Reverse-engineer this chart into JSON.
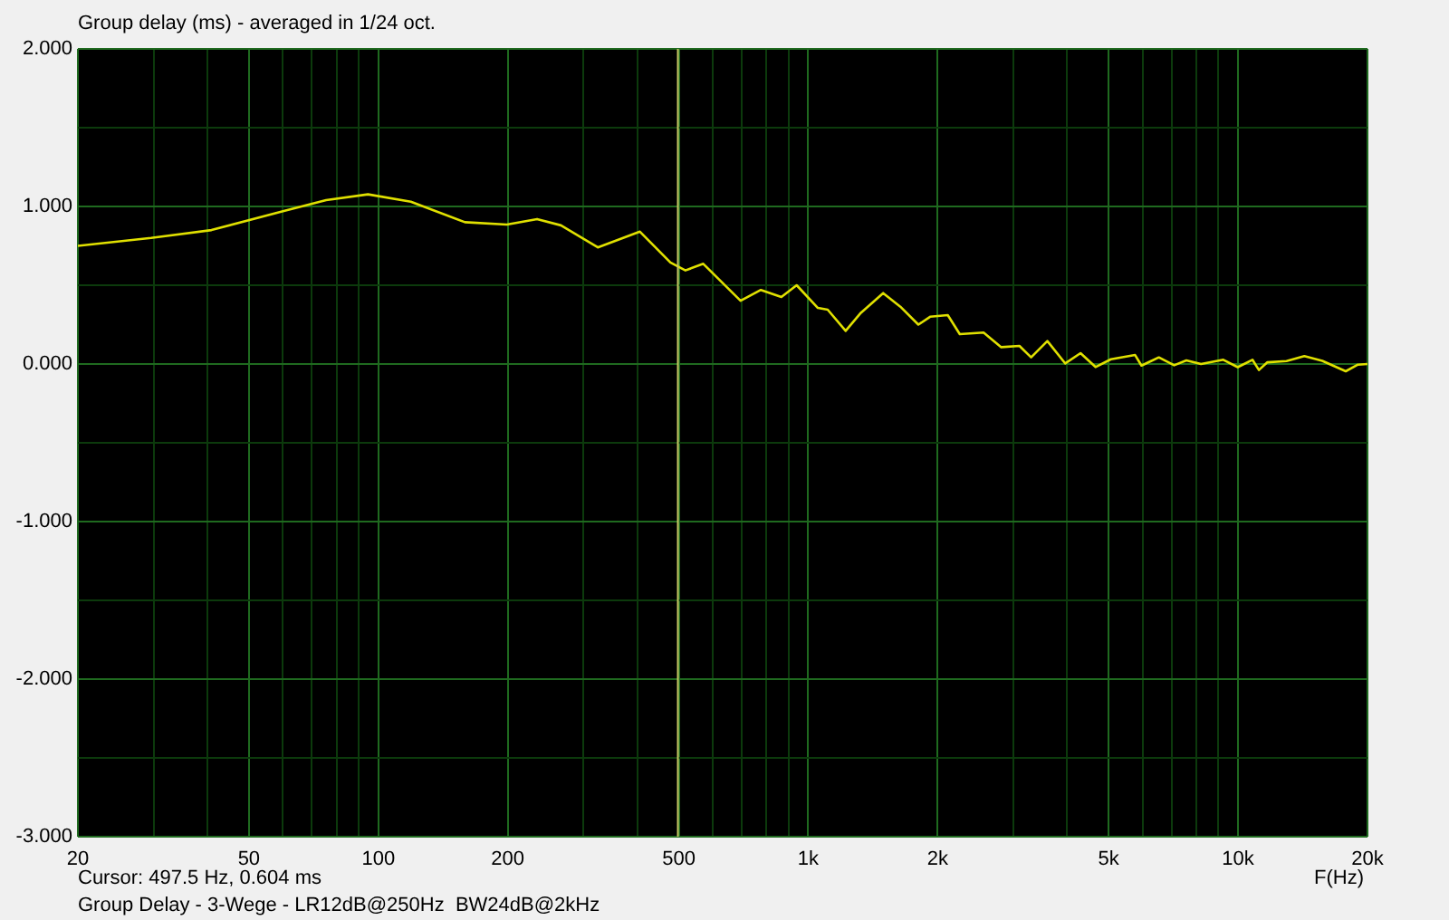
{
  "chart_data": {
    "type": "line",
    "title": "Group delay (ms) - averaged in 1/24 oct.",
    "xlabel": "F(Hz)",
    "annotations": [
      "Cursor: 497.5 Hz, 0.604 ms",
      "Group Delay - 3-Wege - LR12dB@250Hz  BW24dB@2kHz"
    ],
    "log": "x",
    "grid": true,
    "legend": false,
    "marker": "none",
    "line_style": "solid",
    "xlim": [
      20,
      20000
    ],
    "ylim": [
      -3,
      2
    ],
    "xticks": [
      20,
      {
        "value": 30,
        "label": null
      },
      {
        "value": 40,
        "label": null
      },
      50,
      {
        "value": 60,
        "label": null
      },
      {
        "value": 70,
        "label": null
      },
      {
        "value": 80,
        "label": null
      },
      {
        "value": 90,
        "label": null
      },
      100,
      200,
      {
        "value": 300,
        "label": null
      },
      {
        "value": 400,
        "label": null
      },
      500,
      {
        "value": 600,
        "label": null
      },
      {
        "value": 700,
        "label": null
      },
      {
        "value": 800,
        "label": null
      },
      {
        "value": 900,
        "label": null
      },
      {
        "value": 1000,
        "label": "1k"
      },
      {
        "value": 2000,
        "label": "2k"
      },
      {
        "value": 3000,
        "label": null
      },
      {
        "value": 4000,
        "label": null
      },
      {
        "value": 5000,
        "label": "5k"
      },
      {
        "value": 6000,
        "label": null
      },
      {
        "value": 7000,
        "label": null
      },
      {
        "value": 8000,
        "label": null
      },
      {
        "value": 9000,
        "label": null
      },
      {
        "value": 10000,
        "label": "10k"
      },
      {
        "value": 20000,
        "label": "20k"
      }
    ],
    "yticks": [
      {
        "value": -3,
        "label": "-3.000"
      },
      {
        "value": -2.5,
        "label": null
      },
      {
        "value": -2,
        "label": "-2.000"
      },
      {
        "value": -1.5,
        "label": null
      },
      {
        "value": -1,
        "label": "-1.000"
      },
      {
        "value": -0.5,
        "label": null
      },
      {
        "value": 0,
        "label": "0.000"
      },
      {
        "value": 0.5,
        "label": null
      },
      {
        "value": 1,
        "label": "1.000"
      },
      {
        "value": 1.5,
        "label": null
      },
      {
        "value": 2,
        "label": "2.000"
      }
    ],
    "ref_lines": [
      {
        "axis": "x",
        "value": 497.5,
        "label": null,
        "color": "#c8c864"
      }
    ],
    "series": [
      {
        "color": "#e0e000",
        "x": [
          20,
          29.6,
          40.9,
          60,
          75.6,
          94.6,
          119,
          159,
          199,
          234,
          266,
          324,
          406,
          478,
          518,
          570,
          696,
          776,
          866,
          940,
          1053,
          1110,
          1222,
          1326,
          1494,
          1638,
          1804,
          1921,
          2112,
          2252,
          2558,
          2812,
          3100,
          3300,
          3600,
          3960,
          4300,
          4660,
          5060,
          5760,
          5960,
          6540,
          7100,
          7580,
          8200,
          9240,
          9980,
          10800,
          11180,
          11700,
          12960,
          14260,
          15700,
          17800,
          19000,
          20000
        ],
        "values": [
          0.75,
          0.8,
          0.85,
          0.97,
          1.04,
          1.077,
          1.03,
          0.9,
          0.885,
          0.92,
          0.88,
          0.74,
          0.84,
          0.644,
          0.594,
          0.636,
          0.402,
          0.47,
          0.425,
          0.5,
          0.356,
          0.345,
          0.21,
          0.325,
          0.45,
          0.364,
          0.25,
          0.3,
          0.31,
          0.19,
          0.2,
          0.107,
          0.115,
          0.042,
          0.146,
          0.004,
          0.069,
          -0.019,
          0.03,
          0.057,
          -0.01,
          0.042,
          -0.008,
          0.023,
          0,
          0.027,
          -0.02,
          0.027,
          -0.038,
          0.011,
          0.019,
          0.05,
          0.02,
          -0.046,
          -0.004,
          0
        ]
      }
    ]
  }
}
